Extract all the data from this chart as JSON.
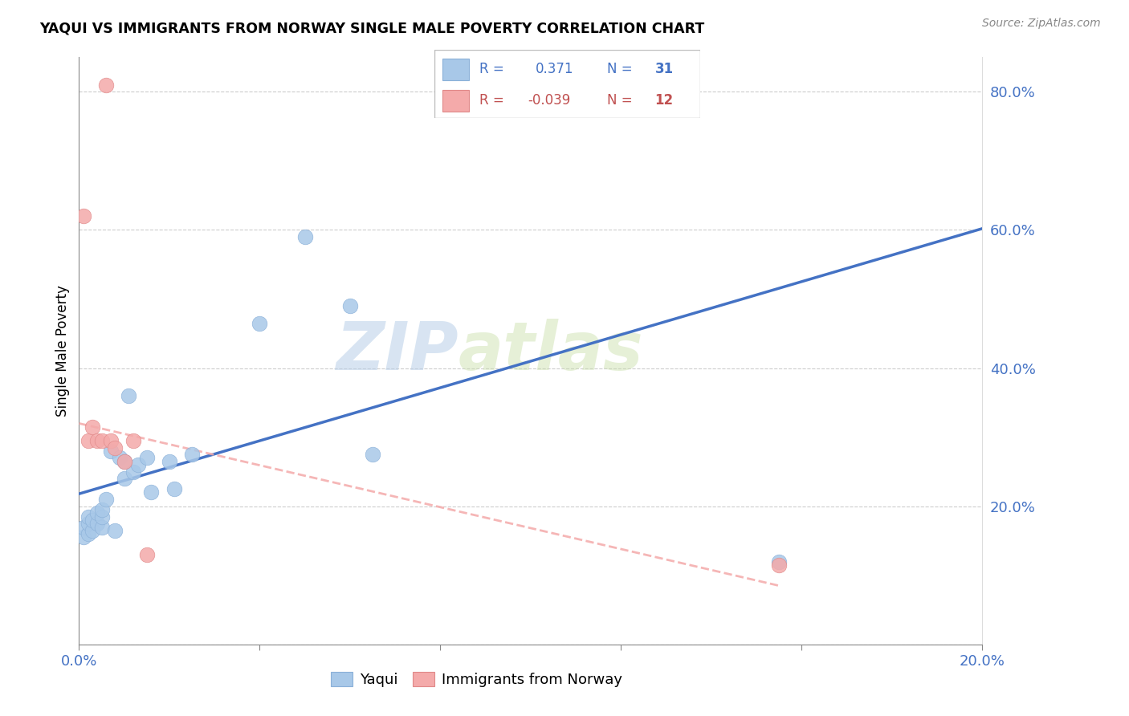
{
  "title": "YAQUI VS IMMIGRANTS FROM NORWAY SINGLE MALE POVERTY CORRELATION CHART",
  "source": "Source: ZipAtlas.com",
  "ylabel": "Single Male Poverty",
  "x_min": 0.0,
  "x_max": 0.2,
  "y_min": 0.0,
  "y_max": 0.85,
  "x_ticks": [
    0.0,
    0.04,
    0.08,
    0.12,
    0.16,
    0.2
  ],
  "x_tick_labels": [
    "0.0%",
    "",
    "",
    "",
    "",
    "20.0%"
  ],
  "y_ticks": [
    0.0,
    0.2,
    0.4,
    0.6,
    0.8
  ],
  "y_tick_labels": [
    "",
    "20.0%",
    "40.0%",
    "60.0%",
    "80.0%"
  ],
  "blue_color": "#a8c8e8",
  "pink_color": "#f4aaaa",
  "trend_blue": "#4472c4",
  "trend_pink": "#f4aaaa",
  "watermark_zip": "ZIP",
  "watermark_atlas": "atlas",
  "legend_label_blue": "Yaqui",
  "legend_label_pink": "Immigrants from Norway",
  "blue_R": "0.371",
  "blue_N": "31",
  "pink_R": "-0.039",
  "pink_N": "12",
  "yaqui_x": [
    0.001,
    0.001,
    0.002,
    0.002,
    0.002,
    0.003,
    0.003,
    0.004,
    0.004,
    0.005,
    0.005,
    0.005,
    0.006,
    0.007,
    0.008,
    0.009,
    0.01,
    0.01,
    0.011,
    0.012,
    0.013,
    0.015,
    0.016,
    0.02,
    0.021,
    0.025,
    0.04,
    0.05,
    0.06,
    0.065,
    0.155
  ],
  "yaqui_y": [
    0.155,
    0.17,
    0.16,
    0.175,
    0.185,
    0.165,
    0.18,
    0.175,
    0.19,
    0.17,
    0.185,
    0.195,
    0.21,
    0.28,
    0.165,
    0.27,
    0.24,
    0.265,
    0.36,
    0.25,
    0.26,
    0.27,
    0.22,
    0.265,
    0.225,
    0.275,
    0.465,
    0.59,
    0.49,
    0.275,
    0.12
  ],
  "norway_x": [
    0.001,
    0.002,
    0.003,
    0.004,
    0.005,
    0.006,
    0.007,
    0.008,
    0.01,
    0.012,
    0.015,
    0.155
  ],
  "norway_y": [
    0.62,
    0.295,
    0.315,
    0.295,
    0.295,
    0.81,
    0.295,
    0.285,
    0.265,
    0.295,
    0.13,
    0.115
  ],
  "blue_line_x0": 0.0,
  "blue_line_y0": 0.218,
  "blue_line_x1": 0.2,
  "blue_line_y1": 0.602,
  "pink_line_x0": 0.0,
  "pink_line_y0": 0.32,
  "pink_line_x1": 0.155,
  "pink_line_y1": 0.085
}
